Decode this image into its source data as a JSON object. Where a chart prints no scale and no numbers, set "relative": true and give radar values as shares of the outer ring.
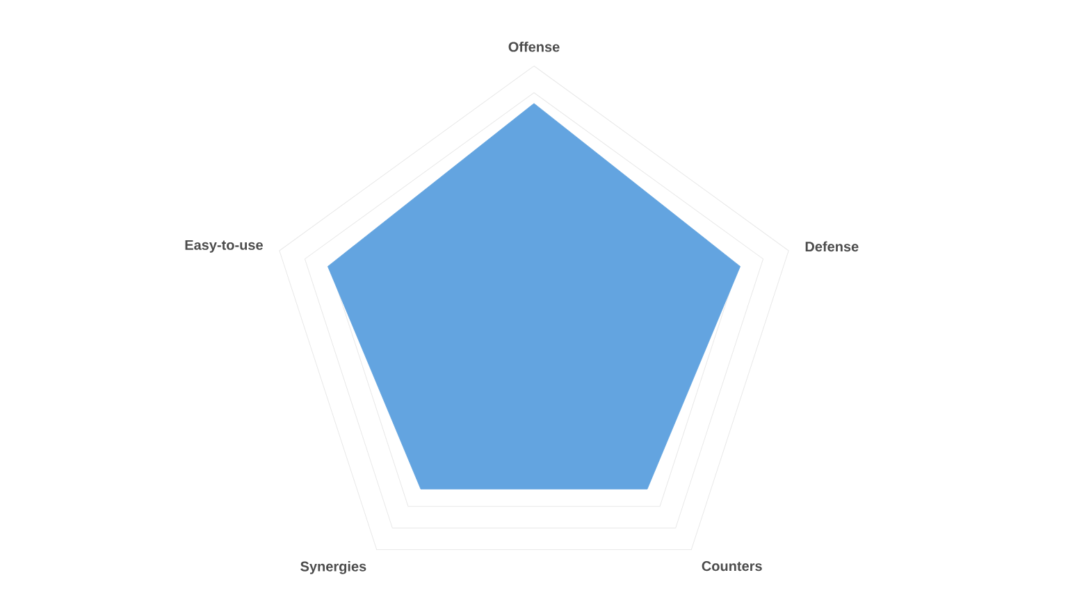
{
  "chart_data": {
    "type": "radar",
    "relative": true,
    "grid": true,
    "categories": [
      "Offense",
      "Defense",
      "Counters",
      "Synergies",
      "Easy-to-use"
    ],
    "series": [
      {
        "color": "#63a4e0",
        "values": [
          0.86,
          0.81,
          0.72,
          0.72,
          0.81
        ]
      }
    ]
  }
}
